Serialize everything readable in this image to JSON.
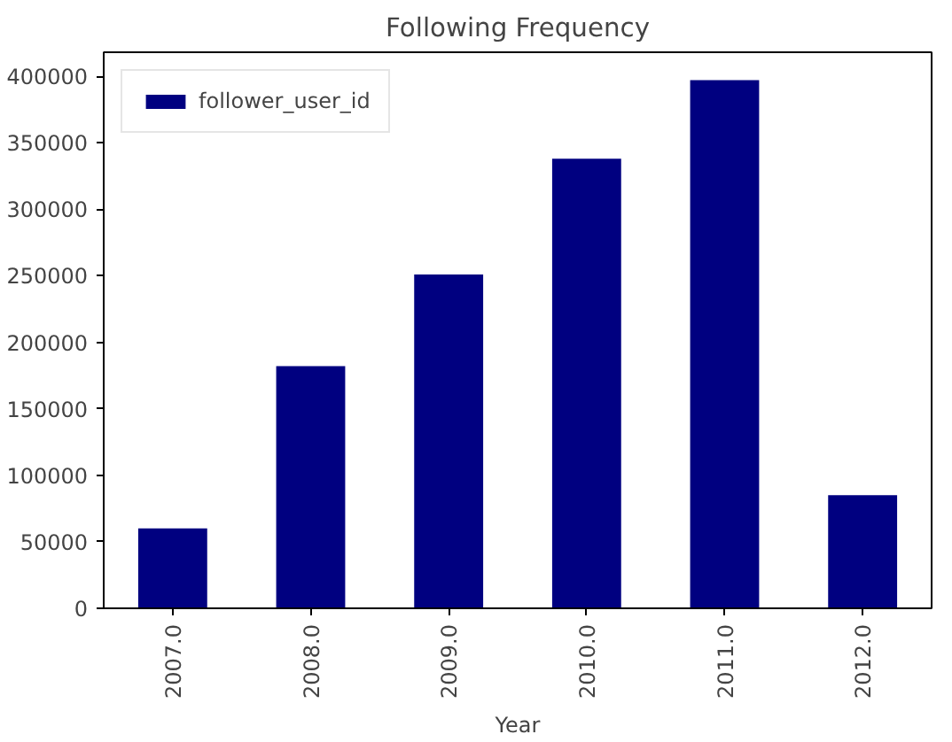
{
  "chart_data": {
    "type": "bar",
    "title": "Following Frequency",
    "xlabel": "Year",
    "categories": [
      "2007.0",
      "2008.0",
      "2009.0",
      "2010.0",
      "2011.0",
      "2012.0"
    ],
    "series": [
      {
        "name": "follower_user_id",
        "color": "#000080",
        "values": [
          60000,
          182000,
          251000,
          338000,
          397000,
          85000
        ]
      }
    ],
    "ylim": [
      0,
      418000
    ],
    "yticks": [
      0,
      50000,
      100000,
      150000,
      200000,
      250000,
      300000,
      350000,
      400000
    ],
    "grid": false,
    "legend": "top left"
  }
}
